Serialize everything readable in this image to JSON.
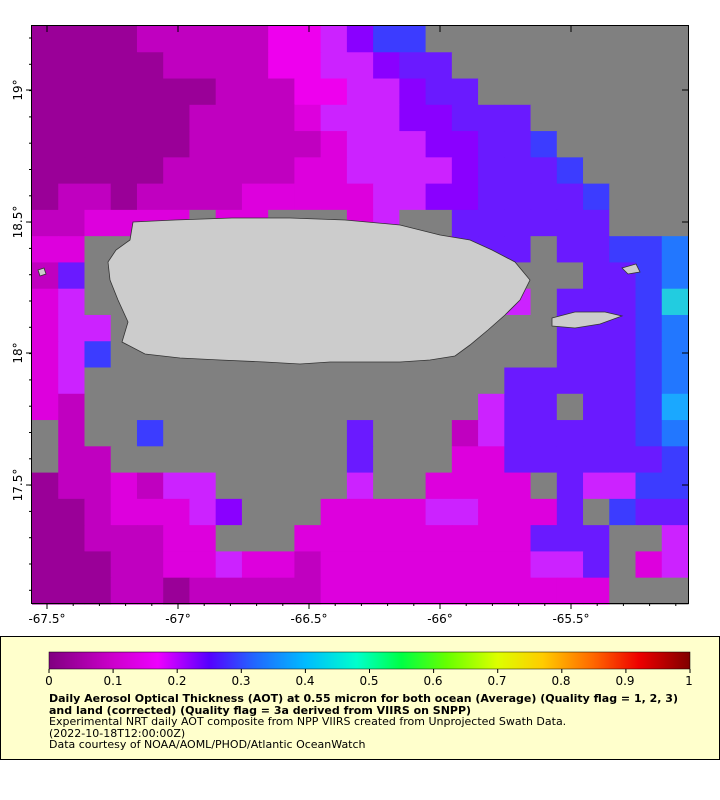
{
  "map": {
    "x_ticks": [
      "-67.5°",
      "-67°",
      "-66.5°",
      "-66°",
      "-65.5°"
    ],
    "y_ticks": [
      "19°",
      "18.5°",
      "18°",
      "17.5°"
    ],
    "colors": {
      "no_data": "#808080",
      "land": "#cccccc",
      "coast": "#333333"
    }
  },
  "legend": {
    "ticks": [
      "0",
      "0.1",
      "0.2",
      "0.3",
      "0.4",
      "0.5",
      "0.6",
      "0.7",
      "0.8",
      "0.9",
      "1"
    ],
    "title": "Daily Aerosol Optical Thickness (AOT) at 0.55 micron for both ocean (Average) (Quality flag = 1, 2, 3) and land (corrected) (Quality flag = 3a derived from VIIRS on SNPP)",
    "line1": "Experimental NRT daily AOT composite from NPP VIIRS created from Unprojected Swath Data.",
    "line2": "(2022-10-18T12:00:00Z)",
    "line3": "Data courtesy of NOAA/AOML/PHOD/Atlantic OceanWatch",
    "colors": {
      "background": "#ffffcc"
    }
  },
  "chart_data": {
    "type": "heatmap",
    "xlabel": "",
    "ylabel": "",
    "xlim": [
      -67.55,
      -65.05
    ],
    "ylim": [
      17.05,
      19.25
    ],
    "colorbar_range": [
      0,
      1
    ]
  }
}
